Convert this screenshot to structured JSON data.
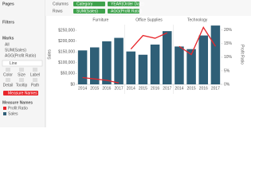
{
  "ui": {
    "pages": "Pages",
    "filters": "Filters",
    "marks": "Marks",
    "marks_items": [
      "All",
      "SUM(Sales)",
      "AGG(Profit Ratio)"
    ],
    "mark_type": "Line",
    "mark_cards": [
      "Color",
      "Size",
      "Label",
      "Detail",
      "Tooltip",
      "Path"
    ],
    "pill": "Measure Names",
    "legend_title": "Measure Names",
    "legend_items": [
      {
        "name": "Profit Ratio",
        "color": "#e8262b"
      },
      {
        "name": "Sales",
        "color": "#2f5f77"
      }
    ]
  },
  "shelves": {
    "columns_label": "Columns",
    "columns": [
      "Category",
      "YEAR(Order Date)"
    ],
    "rows_label": "Rows",
    "rows": [
      "SUM(Sales)",
      "AGG(Profit Ratio)"
    ]
  },
  "chart_data": {
    "type": "bar-line",
    "panels": [
      "Furniture",
      "Office Supplies",
      "Technology"
    ],
    "categories": [
      "2014",
      "2015",
      "2016",
      "2017",
      "2014",
      "2015",
      "2016",
      "2017",
      "2014",
      "2015",
      "2016",
      "2017"
    ],
    "y_label": "Sales",
    "y2_label": "Profit Ratio",
    "series": [
      {
        "name": "Sales",
        "type": "bar",
        "color": "#2f5f77",
        "values": [
          157000,
          171000,
          199000,
          215000,
          152000,
          137000,
          184000,
          246000,
          175000,
          163000,
          226000,
          272000
        ]
      },
      {
        "name": "Profit Ratio",
        "type": "line",
        "axis": "y2",
        "color": "#e8262b",
        "values": [
          2.5,
          2,
          1.5,
          0.5,
          13,
          18,
          17,
          19,
          14,
          11,
          21,
          14
        ]
      }
    ],
    "ylim": [
      0,
      276000
    ],
    "yticks": [
      {
        "value": 0,
        "label": "$0"
      },
      {
        "value": 50000,
        "label": "$50,000"
      },
      {
        "value": 100000,
        "label": "$100,000"
      },
      {
        "value": 150000,
        "label": "$150,000"
      },
      {
        "value": 200000,
        "label": "$200,000"
      },
      {
        "value": 250000,
        "label": "$250,000"
      }
    ],
    "y2lim": [
      0,
      22
    ],
    "y2ticks": [
      {
        "value": 0,
        "label": "0%"
      },
      {
        "value": 5,
        "label": "5%"
      },
      {
        "value": 10,
        "label": "10%"
      },
      {
        "value": 15,
        "label": "15%"
      },
      {
        "value": 20,
        "label": "20%"
      }
    ]
  }
}
